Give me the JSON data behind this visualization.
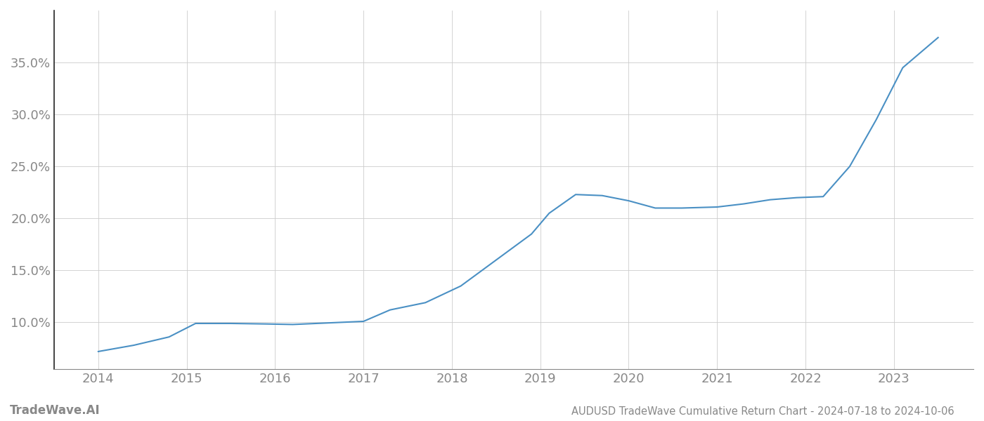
{
  "title": "AUDUSD TradeWave Cumulative Return Chart - 2024-07-18 to 2024-10-06",
  "footer_left": "TradeWave.AI",
  "line_color": "#4a90c4",
  "background_color": "#ffffff",
  "grid_color": "#cccccc",
  "x_values": [
    2014.0,
    2014.4,
    2014.8,
    2015.1,
    2015.5,
    2015.9,
    2016.2,
    2016.6,
    2017.0,
    2017.3,
    2017.7,
    2018.1,
    2018.5,
    2018.9,
    2019.1,
    2019.4,
    2019.7,
    2020.0,
    2020.3,
    2020.6,
    2021.0,
    2021.3,
    2021.6,
    2021.9,
    2022.2,
    2022.5,
    2022.8,
    2023.1,
    2023.5
  ],
  "y_values": [
    7.2,
    7.8,
    8.6,
    9.9,
    9.9,
    9.85,
    9.8,
    9.95,
    10.1,
    11.2,
    11.9,
    13.5,
    16.0,
    18.5,
    20.5,
    22.3,
    22.2,
    21.7,
    21.0,
    21.0,
    21.1,
    21.4,
    21.8,
    22.0,
    22.1,
    25.0,
    29.5,
    34.5,
    37.4
  ],
  "xlim": [
    2013.5,
    2023.9
  ],
  "ylim": [
    5.5,
    40.0
  ],
  "yticks": [
    10.0,
    15.0,
    20.0,
    25.0,
    30.0,
    35.0
  ],
  "xticks": [
    2014,
    2015,
    2016,
    2017,
    2018,
    2019,
    2020,
    2021,
    2022,
    2023
  ],
  "tick_label_color": "#888888",
  "left_spine_color": "#222222",
  "bottom_spine_color": "#888888",
  "line_width": 1.5,
  "title_fontsize": 10.5,
  "tick_fontsize": 13,
  "footer_fontsize": 12
}
